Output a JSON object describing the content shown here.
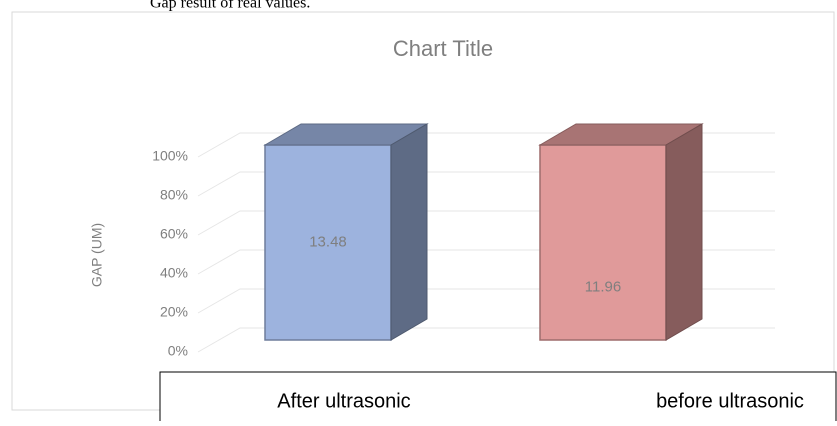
{
  "caption": "Gap result of real values.",
  "chart_data": {
    "type": "bar",
    "stacking": "percent",
    "title": "Chart Title",
    "y_label": "GAP (UM)",
    "categories": [
      "After ultrasonic",
      "before ultrasonic"
    ],
    "values": [
      13.48,
      11.96
    ],
    "colors": [
      "#9db3de",
      "#e09a9a"
    ],
    "ylim": [
      0,
      100
    ],
    "yticks": [
      {
        "value": 0,
        "label": "0%"
      },
      {
        "value": 20,
        "label": "20%"
      },
      {
        "value": 40,
        "label": "40%"
      },
      {
        "value": 60,
        "label": "60%"
      },
      {
        "value": 80,
        "label": "80%"
      },
      {
        "value": 100,
        "label": "100%"
      }
    ],
    "grid": true
  }
}
